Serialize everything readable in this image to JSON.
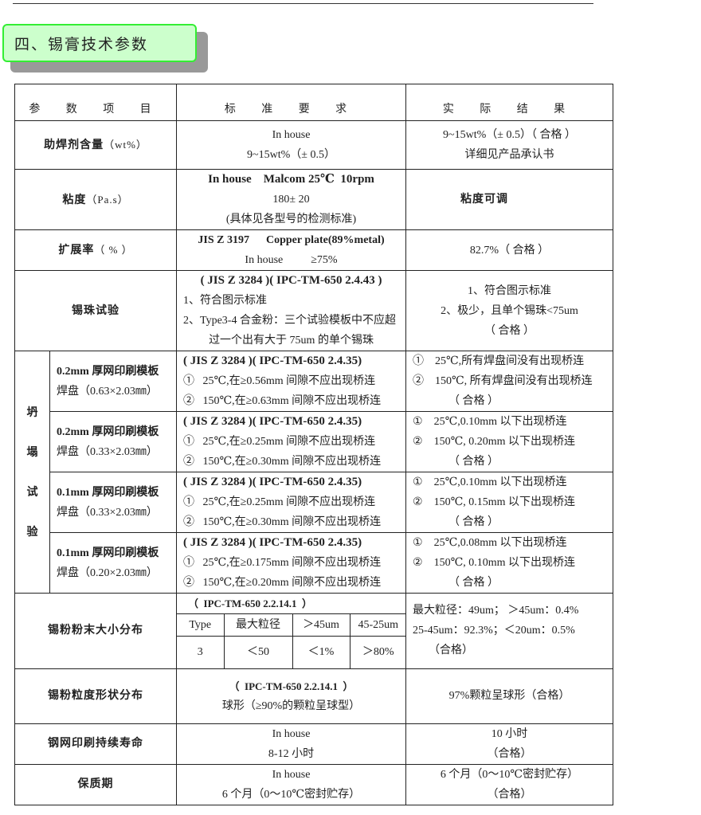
{
  "section_title": "四、锡膏技术参数",
  "headers": [
    "参 数 项 目",
    "标 准 要 求",
    "实 际 结 果"
  ],
  "rows": [
    {
      "label": "助焊剂含量",
      "unit": "（wt%）",
      "std": [
        "In house",
        "9~15wt%（± 0.5）"
      ],
      "res": [
        "9~15wt%（± 0.5）（ 合格 ）",
        "详细见产品承认书"
      ]
    },
    {
      "label": "粘度",
      "unit": "（Pa.s）",
      "std": [
        "In house    Malcom 25℃  10rpm",
        "180± 20",
        "(具体见各型号的检测标准)"
      ],
      "res": [
        "粘度可调"
      ]
    },
    {
      "label": "扩展率",
      "unit": "（ % ）",
      "std": [
        "JIS Z 3197      Copper plate(89%metal)",
        "In house          ≥75%"
      ],
      "res": [
        "82.7%（ 合格 ）"
      ]
    },
    {
      "label": "锡珠试验",
      "std": [
        "( JIS Z 3284 )( IPC-TM-650 2.4.43 )",
        "1、符合图示标准",
        "2、Type3-4 合金粉：三个试验模板中不应超",
        "过一个出有大于 75um 的单个锡珠"
      ],
      "res": [
        "1、符合图示标准",
        "2、极少，且单个锡珠<75um",
        "（ 合格 ）"
      ]
    }
  ],
  "slump": {
    "label": [
      "坍",
      "塌",
      "试",
      "验"
    ],
    "items": [
      {
        "name": [
          "0.2mm 厚网印刷模板",
          "焊盘（0.63×2.03㎜）"
        ],
        "std": [
          "( JIS Z 3284 )( IPC-TM-650 2.4.35)",
          "①   25℃,在≥0.56mm 间隙不应出现桥连",
          "②   150℃,在≥0.63mm 间隙不应出现桥连"
        ],
        "res": [
          "①    25℃,所有焊盘间没有出现桥连",
          "②    150℃, 所有焊盘间没有出现桥连",
          "（ 合格 ）"
        ]
      },
      {
        "name": [
          "0.2mm 厚网印刷模板",
          "焊盘（0.33×2.03㎜）"
        ],
        "std": [
          "( JIS Z 3284 )( IPC-TM-650 2.4.35)",
          "①   25℃,在≥0.25mm 间隙不应出现桥连",
          "②   150℃,在≥0.30mm 间隙不应出现桥连"
        ],
        "res": [
          "①    25℃,0.10mm 以下出现桥连",
          "②    150℃, 0.20mm 以下出现桥连",
          "（ 合格 ）"
        ]
      },
      {
        "name": [
          "0.1mm 厚网印刷模板",
          "焊盘（0.33×2.03㎜）"
        ],
        "std": [
          "( JIS Z 3284 )( IPC-TM-650 2.4.35)",
          "①   25℃,在≥0.25mm 间隙不应出现桥连",
          "②   150℃,在≥0.30mm 间隙不应出现桥连"
        ],
        "res": [
          "①    25℃,0.10mm 以下出现桥连",
          "②    150℃, 0.15mm 以下出现桥连",
          "（ 合格 ）"
        ]
      },
      {
        "name": [
          "0.1mm 厚网印刷模板",
          "焊盘（0.20×2.03㎜）"
        ],
        "std": [
          "( JIS Z 3284 )( IPC-TM-650 2.4.35)",
          "①   25℃,在≥0.175mm 间隙不应出现桥连",
          "②   150℃,在≥0.20mm 间隙不应出现桥连"
        ],
        "res": [
          "①    25℃,0.08mm 以下出现桥连",
          "②    150℃, 0.10mm 以下出现桥连",
          "（ 合格 ）"
        ]
      }
    ]
  },
  "powder": {
    "label": "锡粉粉末大小分布",
    "std_title": "（  IPC-TM-650 2.2.14.1  ）",
    "cols": [
      "Type",
      "最大粒径",
      "＞45um",
      "45-25um"
    ],
    "vals": [
      "3",
      "＜50",
      "＜1%",
      "＞80%"
    ],
    "res": [
      "最大粒径：49um；  ＞45um：0.4%",
      "25-45um：92.3%；＜20um：0.5%",
      "（合格）"
    ]
  },
  "tail": [
    {
      "label": "锡粉粒度形状分布",
      "std": [
        "（  IPC-TM-650 2.2.14.1  ）",
        "球形（≥90%的颗粒呈球型）"
      ],
      "res": [
        "97%颗粒呈球形（合格）"
      ]
    },
    {
      "label": "钢网印刷持续寿命",
      "std": [
        "In house",
        "8-12 小时"
      ],
      "res": [
        "10 小时",
        "（合格）"
      ]
    },
    {
      "label": "保质期",
      "std": [
        "In house",
        "6 个月（0～10℃密封贮存）"
      ],
      "res": [
        "6 个月（0～10℃密封贮存）",
        "（合格）"
      ]
    }
  ]
}
